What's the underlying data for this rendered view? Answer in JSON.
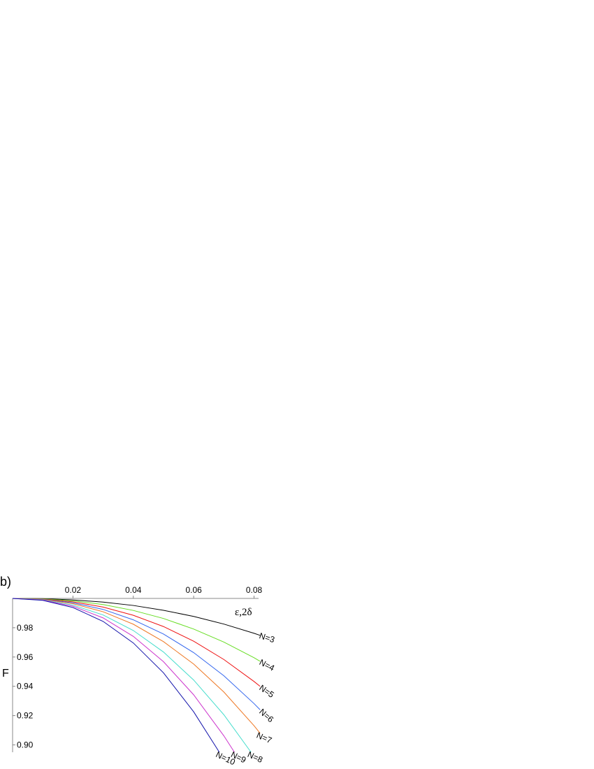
{
  "chart_data": {
    "type": "line",
    "panel_label": "b)",
    "x_label": "ε,2δ",
    "y_label": "F",
    "xlim": [
      0,
      0.0815
    ],
    "ylim": [
      0.895,
      1.0
    ],
    "xticks": [
      0.02,
      0.04,
      0.06,
      0.08
    ],
    "yticks": [
      {
        "value": 0.9,
        "label": "0.90"
      },
      0.92,
      0.94,
      0.96,
      0.98
    ],
    "series": [
      {
        "name": "N=3",
        "color": "#000000",
        "x": [
          0,
          0.01,
          0.02,
          0.03,
          0.04,
          0.05,
          0.06,
          0.07,
          0.08,
          0.082
        ],
        "values": [
          1.0,
          0.9998,
          0.999,
          0.9975,
          0.9952,
          0.9919,
          0.9877,
          0.9825,
          0.9762,
          0.9748
        ]
      },
      {
        "name": "N=4",
        "color": "#66dd22",
        "x": [
          0,
          0.01,
          0.02,
          0.03,
          0.04,
          0.05,
          0.06,
          0.07,
          0.08,
          0.082
        ],
        "values": [
          1.0,
          0.9997,
          0.9983,
          0.9958,
          0.9918,
          0.9863,
          0.9791,
          0.9702,
          0.9595,
          0.9571
        ]
      },
      {
        "name": "N=5",
        "color": "#ee1111",
        "x": [
          0,
          0.01,
          0.02,
          0.03,
          0.04,
          0.05,
          0.06,
          0.07,
          0.08,
          0.082
        ],
        "values": [
          1.0,
          0.9995,
          0.9977,
          0.9941,
          0.9885,
          0.9808,
          0.9708,
          0.9583,
          0.9433,
          0.94
        ]
      },
      {
        "name": "N=6",
        "color": "#3366ee",
        "x": [
          0,
          0.01,
          0.02,
          0.03,
          0.04,
          0.05,
          0.06,
          0.07,
          0.08,
          0.082
        ],
        "values": [
          1.0,
          0.9994,
          0.997,
          0.9925,
          0.9854,
          0.9757,
          0.963,
          0.9472,
          0.9282,
          0.924
        ]
      },
      {
        "name": "N=7",
        "color": "#ee7722",
        "x": [
          0,
          0.01,
          0.02,
          0.03,
          0.04,
          0.05,
          0.06,
          0.07,
          0.08,
          0.082
        ],
        "values": [
          1.0,
          0.9993,
          0.9964,
          0.9909,
          0.9824,
          0.9705,
          0.9552,
          0.9361,
          0.9131,
          0.908
        ]
      },
      {
        "name": "N=8",
        "color": "#44ddcc",
        "x": [
          0,
          0.01,
          0.02,
          0.03,
          0.04,
          0.05,
          0.06,
          0.07,
          0.079
        ],
        "values": [
          1.0,
          0.9991,
          0.9955,
          0.9887,
          0.9781,
          0.9634,
          0.9443,
          0.9206,
          0.895
        ]
      },
      {
        "name": "N=9",
        "color": "#cc33cc",
        "x": [
          0,
          0.01,
          0.02,
          0.03,
          0.04,
          0.05,
          0.06,
          0.07,
          0.0735
        ],
        "values": [
          1.0,
          0.9989,
          0.9947,
          0.9867,
          0.9741,
          0.9568,
          0.9342,
          0.9062,
          0.895
        ]
      },
      {
        "name": "N=10",
        "color": "#1111aa",
        "x": [
          0,
          0.01,
          0.02,
          0.03,
          0.04,
          0.05,
          0.06,
          0.0685
        ],
        "values": [
          1.0,
          0.9987,
          0.9938,
          0.9843,
          0.9696,
          0.9492,
          0.9226,
          0.895
        ]
      }
    ]
  }
}
